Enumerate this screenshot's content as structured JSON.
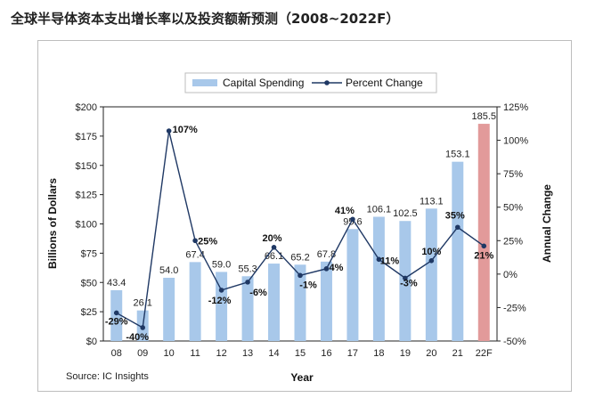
{
  "title": "全球半导体资本支出增长率以及投资额新预测（2008~2022F）",
  "source": "Source: IC Insights",
  "chart_data": {
    "type": "bar+line",
    "categories": [
      "08",
      "09",
      "10",
      "11",
      "12",
      "13",
      "14",
      "15",
      "16",
      "17",
      "18",
      "19",
      "20",
      "21",
      "22F"
    ],
    "series": [
      {
        "name": "Capital Spending",
        "type": "bar",
        "axis": "left",
        "values": [
          43.4,
          26.1,
          54.0,
          67.4,
          59.0,
          55.3,
          66.1,
          65.2,
          67.8,
          95.6,
          106.1,
          102.5,
          113.1,
          153.1,
          185.5
        ],
        "labels": [
          "43.4",
          "26.1",
          "54.0",
          "67.4",
          "59.0",
          "55.3",
          "66.1",
          "65.2",
          "67.8",
          "95.6",
          "106.1",
          "102.5",
          "113.1",
          "153.1",
          "185.5"
        ],
        "color": "#a8c8ea",
        "highlight_color": "#e29a9a",
        "highlight_index": 14
      },
      {
        "name": "Percent Change",
        "type": "line",
        "axis": "right",
        "values": [
          -29,
          -40,
          107,
          25,
          -12,
          -6,
          20,
          -1,
          4,
          41,
          11,
          -3,
          10,
          35,
          21
        ],
        "labels": [
          "-29%",
          "-40%",
          "107%",
          "25%",
          "-12%",
          "-6%",
          "20%",
          "-1%",
          "4%",
          "41%",
          "11%",
          "-3%",
          "10%",
          "35%",
          "21%"
        ],
        "color": "#1f3864"
      }
    ],
    "xlabel": "Year",
    "ylabel": "Billions of Dollars",
    "y2label": "Annual Change",
    "ylim": [
      0,
      200
    ],
    "y2lim": [
      -50,
      125
    ],
    "yticks": [
      "$0",
      "$25",
      "$50",
      "$75",
      "$100",
      "$125",
      "$150",
      "$175",
      "$200"
    ],
    "y2ticks": [
      "-50%",
      "-25%",
      "0%",
      "25%",
      "50%",
      "75%",
      "100%",
      "125%"
    ],
    "legend_position": "top-center"
  }
}
